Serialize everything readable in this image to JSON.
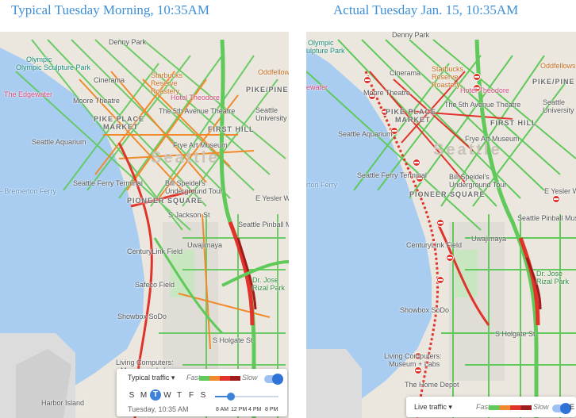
{
  "titles": {
    "left": "Typical Tuesday Morning, 10:35AM",
    "right": "Actual Tuesday Jan. 15, 10:35AM"
  },
  "labels": {
    "denny_park": "Denny Park",
    "olympic_sculpture_park": "Olympic Sculpture Park",
    "olympic_partial": "Olympic",
    "sculpture_partial": "ulpture Park",
    "cinerama": "Cinerama",
    "starbucks_reserve": "Starbucks Reserve Roastery",
    "oddfellows": "Oddfellows",
    "pike_pine": "PIKE/PINE",
    "the_edgewater": "The Edgewater",
    "edgewater_partial": "ewater",
    "moore_theatre": "Moore Theatre",
    "hotel_theodore": "Hotel Theodore",
    "fifth_avenue_theatre": "The 5th Avenue Theatre",
    "pike_place_market_1": "PIKE PLACE",
    "pike_place_market_2": "MARKET",
    "seattle_university": "Seattle University",
    "first_hill": "FIRST HILL",
    "seattle_aquarium": "Seattle Aquarium",
    "frye_art_museum": "Frye Art Museum",
    "seattle": "Seattle",
    "bremerton_ferry": "- Bremerton Ferry",
    "seattle_ferry_terminal": "Seattle Ferry Terminal",
    "bill_speidels_1": "Bill Speidel's",
    "bill_speidels_2": "Underground Tour",
    "pioneer_square": "PIONEER SQUARE",
    "yesler_way": "E Yesler Way",
    "jackson_st": "S Jackson St",
    "seattle_pinball": "Seattle Pinball Museum",
    "centurylink": "CenturyLink Field",
    "uwajimaya": "Uwajimaya",
    "safeco": "Safeco Field",
    "dr_jose_rizal_1": "Dr. Jose",
    "dr_jose_rizal_2": "Rizal Park",
    "showbox": "Showbox SoDo",
    "holgate": "S Holgate St",
    "living_computers_1": "Living Computers:",
    "living_computers_2": "Museum + Labs",
    "home_depot": "The Home Depot",
    "harbor_island": "Harbor Island",
    "ferry_partial": "rton Ferry",
    "shield_99": "99",
    "shield_304": "304"
  },
  "left_panel": {
    "mode": "Typical traffic",
    "fast": "Fast",
    "slow": "Slow",
    "days": [
      "S",
      "M",
      "T",
      "W",
      "T",
      "F",
      "S"
    ],
    "selected_day_index": 2,
    "datetime": "Tuesday, 10:35 AM",
    "times": [
      "8 AM",
      "12 PM",
      "4 PM",
      "8 PM"
    ],
    "slider_fraction": 0.25
  },
  "right_panel": {
    "mode": "Live traffic",
    "fast": "Fast",
    "slow": "Slow",
    "extra": "E"
  },
  "colors": {
    "water": "#a9cdf1",
    "land": "#ebe7df",
    "traffic_fast": "#5fc95a",
    "traffic_medium": "#f08a2c",
    "traffic_slow": "#e0332a",
    "traffic_heavy": "#9e1c1c",
    "accent": "#3d8fd6"
  }
}
